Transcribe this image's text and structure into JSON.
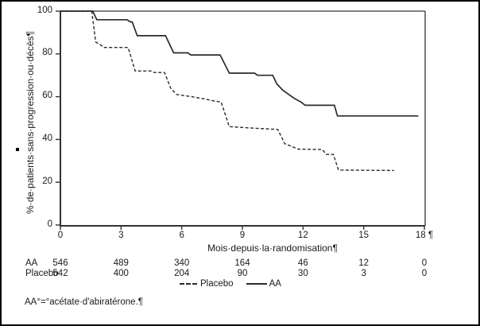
{
  "chart_data": {
    "type": "line",
    "km_step_plot": true,
    "title": "",
    "xlabel": "Mois depuis la randomisation",
    "xlabel_display": "Mois·depuis·la·randomisation¶",
    "ylabel": "% de patients sans progression ou décès",
    "ylabel_display": "%·de·patients·sans·progression·ou·décès¶",
    "xlim": [
      0,
      18
    ],
    "ylim": [
      0,
      100
    ],
    "xticks": [
      0,
      3,
      6,
      9,
      12,
      15,
      18
    ],
    "xtick_labels": [
      "0",
      "3",
      "6",
      "9",
      "12",
      "15",
      "18 ¶"
    ],
    "yticks": [
      100,
      80,
      60,
      40,
      20,
      0
    ],
    "grid": false,
    "legend_position": "bottom",
    "series": [
      {
        "name": "Placebo",
        "line_style": "dashed",
        "color": "#2b2b2b",
        "points": [
          [
            0,
            100
          ],
          [
            1.55,
            100
          ],
          [
            1.75,
            85.5
          ],
          [
            1.95,
            84.5
          ],
          [
            2.15,
            83
          ],
          [
            3.35,
            83
          ],
          [
            3.7,
            72
          ],
          [
            4.5,
            72
          ],
          [
            4.65,
            71.3
          ],
          [
            5.15,
            71.3
          ],
          [
            5.45,
            64
          ],
          [
            5.75,
            61
          ],
          [
            6.5,
            60
          ],
          [
            7.1,
            59
          ],
          [
            7.6,
            58
          ],
          [
            7.95,
            57.5
          ],
          [
            8.35,
            46
          ],
          [
            9.5,
            45.3
          ],
          [
            10.75,
            44.7
          ],
          [
            11.1,
            38
          ],
          [
            11.5,
            36.5
          ],
          [
            11.75,
            35.5
          ],
          [
            12.95,
            35.3
          ],
          [
            13.15,
            33
          ],
          [
            13.5,
            33
          ],
          [
            13.75,
            25.7
          ],
          [
            16.5,
            25.5
          ]
        ]
      },
      {
        "name": "AA",
        "line_style": "solid",
        "color": "#2b2b2b",
        "points": [
          [
            0,
            100
          ],
          [
            1.6,
            100
          ],
          [
            1.8,
            96
          ],
          [
            3.3,
            96
          ],
          [
            3.45,
            95
          ],
          [
            3.55,
            95
          ],
          [
            3.8,
            88.5
          ],
          [
            5.2,
            88.5
          ],
          [
            5.6,
            80.5
          ],
          [
            6.3,
            80.5
          ],
          [
            6.45,
            79.5
          ],
          [
            7.9,
            79.5
          ],
          [
            8.35,
            71
          ],
          [
            9.6,
            71
          ],
          [
            9.75,
            70
          ],
          [
            10.5,
            70
          ],
          [
            10.7,
            66
          ],
          [
            11.0,
            63
          ],
          [
            11.3,
            61
          ],
          [
            11.6,
            59
          ],
          [
            11.9,
            57.5
          ],
          [
            12.1,
            56
          ],
          [
            13.55,
            56
          ],
          [
            13.7,
            51
          ],
          [
            17.7,
            51
          ]
        ]
      }
    ],
    "number_at_risk": {
      "months": [
        0,
        3,
        6,
        9,
        12,
        15,
        18
      ],
      "rows": [
        {
          "label": "AA",
          "counts": [
            "546",
            "489",
            "340",
            "164",
            "46",
            "12",
            "0"
          ]
        },
        {
          "label": "Placebo",
          "counts": [
            "542",
            "400",
            "204",
            "90",
            "30",
            "3",
            "0"
          ]
        }
      ]
    }
  },
  "legend": {
    "items": [
      {
        "label": "Placebo",
        "style": "dashed"
      },
      {
        "label": "AA",
        "style": "solid"
      }
    ]
  },
  "footnote": "AA°=°acétate·d'abiratérone.¶",
  "colors": {
    "curve": "#2b2b2b",
    "text": "#1a1a1a",
    "frame": "#333333",
    "page_border": "#000000"
  }
}
